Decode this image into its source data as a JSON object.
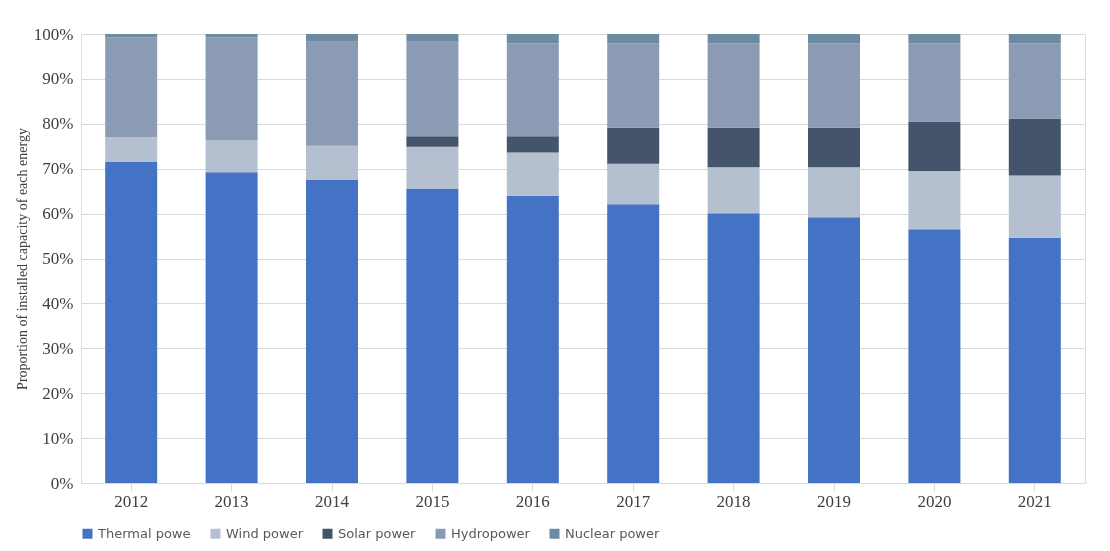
{
  "chart_data": {
    "type": "bar",
    "stacked": true,
    "ylabel": "Proportion of installed capacity of each energy",
    "categories": [
      "2012",
      "2013",
      "2014",
      "2015",
      "2016",
      "2017",
      "2018",
      "2019",
      "2020",
      "2021"
    ],
    "series": [
      {
        "name": "Thermal powe",
        "color": "#4472c4",
        "values": [
          71.5,
          69.2,
          67.6,
          65.5,
          64.0,
          62.1,
          60.1,
          59.2,
          56.5,
          54.6
        ]
      },
      {
        "name": "Wind power",
        "color": "#b4c0d0",
        "values": [
          5.5,
          7.1,
          7.5,
          9.4,
          9.6,
          9.0,
          10.2,
          11.1,
          13.0,
          13.9
        ]
      },
      {
        "name": "Solar power",
        "color": "#44546a",
        "values": [
          null,
          null,
          null,
          2.3,
          3.6,
          8.0,
          8.8,
          8.8,
          11.0,
          12.7
        ]
      },
      {
        "name": "Hydropower",
        "color": "#8a9bb3",
        "values": [
          22.2,
          22.9,
          23.2,
          21.1,
          20.7,
          18.8,
          18.8,
          18.8,
          17.4,
          16.7
        ]
      },
      {
        "name": "Nuclear power",
        "color": "#6d8aa3",
        "values": [
          0.8,
          0.8,
          1.7,
          1.7,
          2.1,
          2.1,
          2.1,
          2.1,
          2.1,
          2.1
        ]
      }
    ],
    "ylim": [
      0,
      100
    ],
    "yticks": [
      {
        "value": 0,
        "label": "0%"
      },
      {
        "value": 10,
        "label": "10%"
      },
      {
        "value": 20,
        "label": "20%"
      },
      {
        "value": 30,
        "label": "30%"
      },
      {
        "value": 40,
        "label": "40%"
      },
      {
        "value": 50,
        "label": "50%"
      },
      {
        "value": 60,
        "label": "60%"
      },
      {
        "value": 70,
        "label": "70%"
      },
      {
        "value": 80,
        "label": "80%"
      },
      {
        "value": 90,
        "label": "90%"
      },
      {
        "value": 100,
        "label": "100%"
      }
    ],
    "grid": "y",
    "legend": "bottom"
  }
}
